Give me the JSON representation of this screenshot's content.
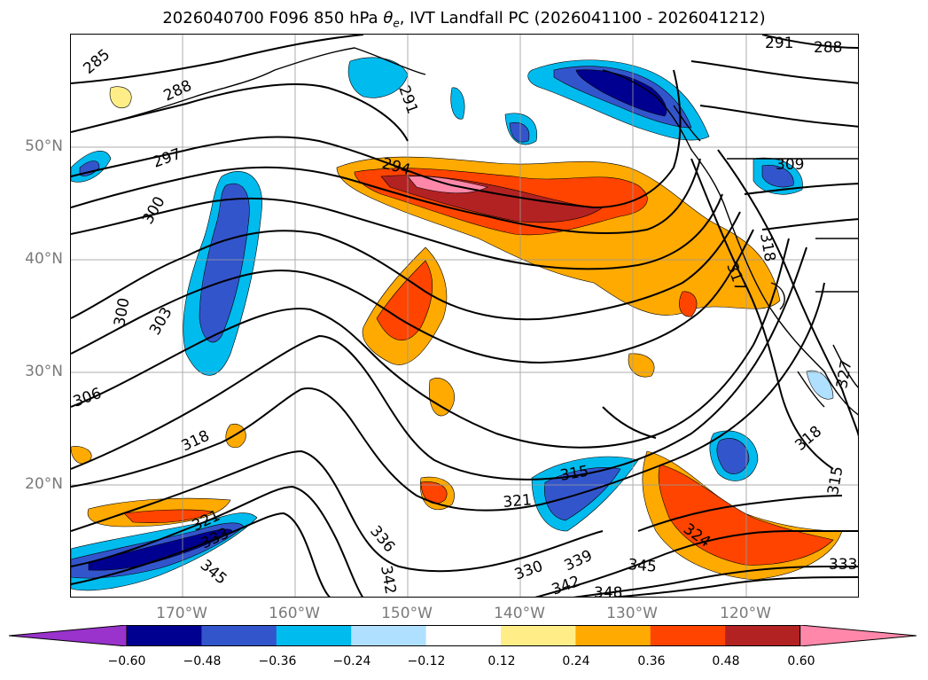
{
  "title_parts": {
    "prefix": "2026040700 F096 850 hPa ",
    "symbol": "θ",
    "subscript": "e",
    "suffix": ", IVT Landfall PC (2026041100 - 2026041212)"
  },
  "lat_labels": [
    "50°N",
    "40°N",
    "30°N",
    "20°N"
  ],
  "lon_labels": [
    "170°W",
    "160°W",
    "150°W",
    "140°W",
    "130°W",
    "120°W"
  ],
  "contour_labels": [
    "285",
    "288",
    "291",
    "291",
    "288",
    "297",
    "294",
    "300",
    "300",
    "303",
    "306",
    "318",
    "321",
    "309",
    "318",
    "317",
    "315",
    "321",
    "318",
    "327",
    "315",
    "336",
    "333",
    "324",
    "330",
    "339",
    "345",
    "342",
    "348",
    "333",
    "345",
    "342"
  ],
  "colorbar": {
    "colors": [
      "#9933cc",
      "#000090",
      "#3355cc",
      "#00bbee",
      "#b0e0ff",
      "#ffffff",
      "#ffee88",
      "#ffaa00",
      "#ff4400",
      "#b22222",
      "#ff88aa"
    ],
    "labels": [
      "−0.60",
      "−0.48",
      "−0.36",
      "−0.24",
      "−0.12",
      "0.12",
      "0.24",
      "0.36",
      "0.48",
      "0.60"
    ]
  }
}
